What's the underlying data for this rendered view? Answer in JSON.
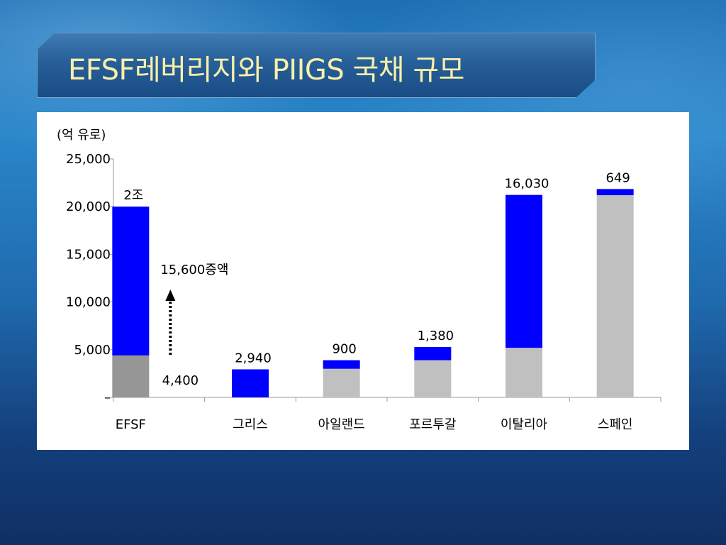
{
  "slide": {
    "title": "EFSF레버리지와 PIIGS 국채 규모"
  },
  "colors": {
    "increase": "#0000ff",
    "efsf_base": "#969696",
    "base": "#c0c0c0"
  },
  "annotation": {
    "arrow_label": "15,600증액"
  },
  "chart_data": {
    "type": "bar",
    "stacked": true,
    "unit_label": "(억 유로)",
    "ylim": [
      0,
      25000
    ],
    "y_ticks": [
      {
        "value": 0,
        "label": "–"
      },
      {
        "value": 5000,
        "label": "5,000"
      },
      {
        "value": 10000,
        "label": "10,000"
      },
      {
        "value": 15000,
        "label": "15,000"
      },
      {
        "value": 20000,
        "label": "20,000"
      },
      {
        "value": 25000,
        "label": "25,000"
      }
    ],
    "categories": [
      "EFSF",
      "그리스",
      "아일랜드",
      "포르투갈",
      "이탈리아",
      "스페인"
    ],
    "series": [
      {
        "role": "base",
        "values": [
          4400,
          0,
          3000,
          3900,
          5200,
          21200
        ]
      },
      {
        "role": "increase",
        "values": [
          15600,
          2940,
          900,
          1380,
          16030,
          649
        ]
      }
    ],
    "data_labels": [
      {
        "category": "EFSF",
        "top": "2조",
        "base": "4,400"
      },
      {
        "category": "그리스",
        "top": "2,940"
      },
      {
        "category": "아일랜드",
        "top": "900"
      },
      {
        "category": "포르투갈",
        "top": "1,380"
      },
      {
        "category": "이탈리아",
        "top": "16,030"
      },
      {
        "category": "스페인",
        "top": "649"
      }
    ],
    "grid": false,
    "legend": "none"
  }
}
